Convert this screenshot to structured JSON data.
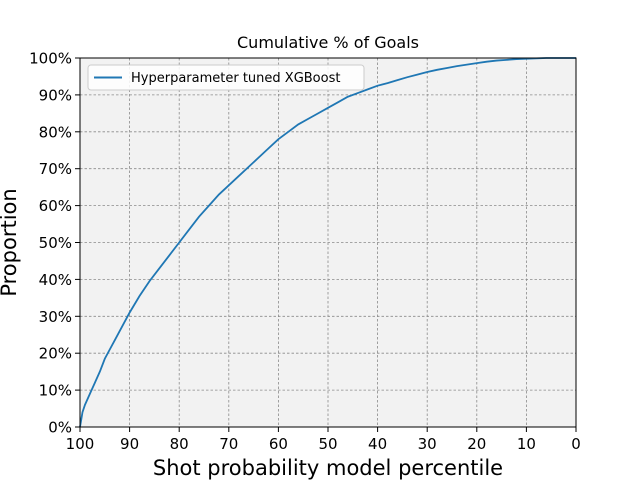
{
  "chart_data": {
    "type": "line",
    "title": "Cumulative % of Goals",
    "xlabel": "Shot probability model percentile",
    "ylabel": "Proportion",
    "xlim": [
      100,
      0
    ],
    "ylim": [
      0,
      100
    ],
    "x_ticks": [
      100,
      90,
      80,
      70,
      60,
      50,
      40,
      30,
      20,
      10,
      0
    ],
    "y_ticks": [
      0,
      10,
      20,
      30,
      40,
      50,
      60,
      70,
      80,
      90,
      100
    ],
    "y_tick_format": "percent",
    "grid": true,
    "legend_position": "top-left",
    "series": [
      {
        "name": "Hyperparameter tuned XGBoost",
        "color": "#1f77b4",
        "x": [
          100,
          99.5,
          99,
          98,
          97,
          96,
          95,
          94,
          93,
          92,
          91,
          90,
          88,
          86,
          84,
          82,
          80,
          78,
          76,
          74,
          72,
          70,
          68,
          66,
          64,
          62,
          60,
          58,
          56,
          54,
          52,
          50,
          48,
          46,
          44,
          42,
          40,
          38,
          36,
          34,
          32,
          30,
          28,
          26,
          24,
          22,
          20,
          18,
          16,
          14,
          12,
          10,
          8,
          6,
          4,
          2,
          0
        ],
        "y": [
          0,
          4,
          6,
          9,
          12,
          15,
          18.5,
          21,
          23.5,
          26,
          28.5,
          31,
          35.5,
          39.5,
          43,
          46.5,
          50,
          53.5,
          57,
          60,
          63,
          65.5,
          68,
          70.5,
          73,
          75.5,
          78,
          80,
          82,
          83.5,
          85,
          86.5,
          88,
          89.5,
          90.5,
          91.5,
          92.5,
          93.2,
          94,
          94.8,
          95.5,
          96.2,
          96.8,
          97.3,
          97.8,
          98.2,
          98.6,
          99,
          99.3,
          99.5,
          99.7,
          99.8,
          99.9,
          100,
          100,
          100,
          100
        ]
      }
    ]
  }
}
